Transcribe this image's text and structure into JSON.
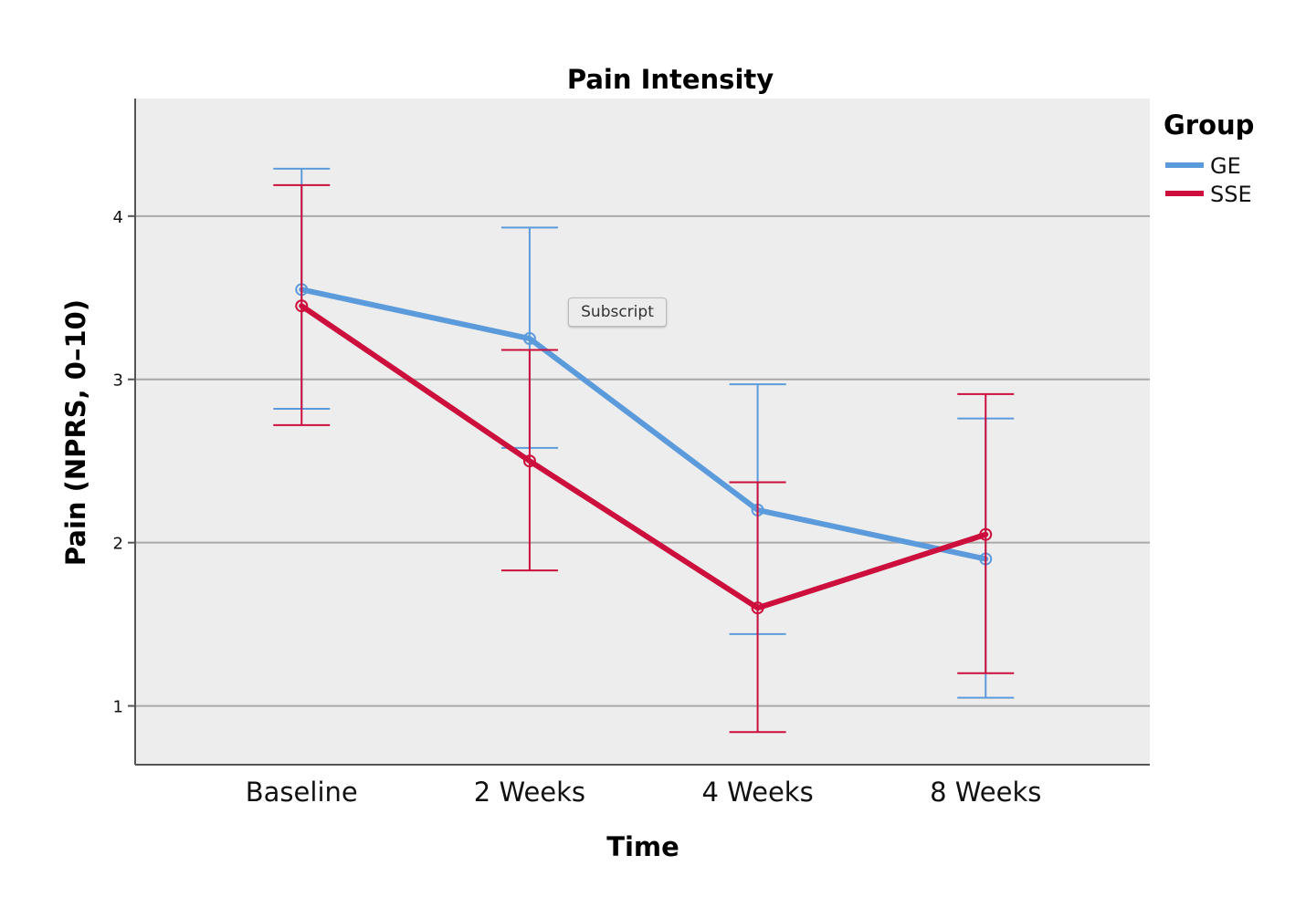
{
  "chart_data": {
    "type": "line",
    "title": "Pain Intensity",
    "xlabel": "Time",
    "ylabel": "Pain (NPRS, 0–10)",
    "categories": [
      "Baseline",
      "2 Weeks",
      "4 Weeks",
      "8 Weeks"
    ],
    "ylim": [
      0.64,
      4.72
    ],
    "yticks": [
      1,
      2,
      3,
      4
    ],
    "grid": true,
    "legend": {
      "title": "Group",
      "position": "top-right"
    },
    "series": [
      {
        "name": "GE",
        "color": "#5b9bdc",
        "values": [
          3.55,
          3.25,
          2.2,
          1.9
        ],
        "lower": [
          2.82,
          2.58,
          1.44,
          1.05
        ],
        "upper": [
          4.29,
          3.93,
          2.97,
          2.76
        ]
      },
      {
        "name": "SSE",
        "color": "#cc0f3c",
        "values": [
          3.45,
          2.5,
          1.6,
          2.05
        ],
        "lower": [
          2.72,
          1.83,
          0.84,
          1.2
        ],
        "upper": [
          4.19,
          3.18,
          2.37,
          2.91
        ]
      }
    ]
  },
  "tooltip": {
    "label": "Subscript"
  }
}
